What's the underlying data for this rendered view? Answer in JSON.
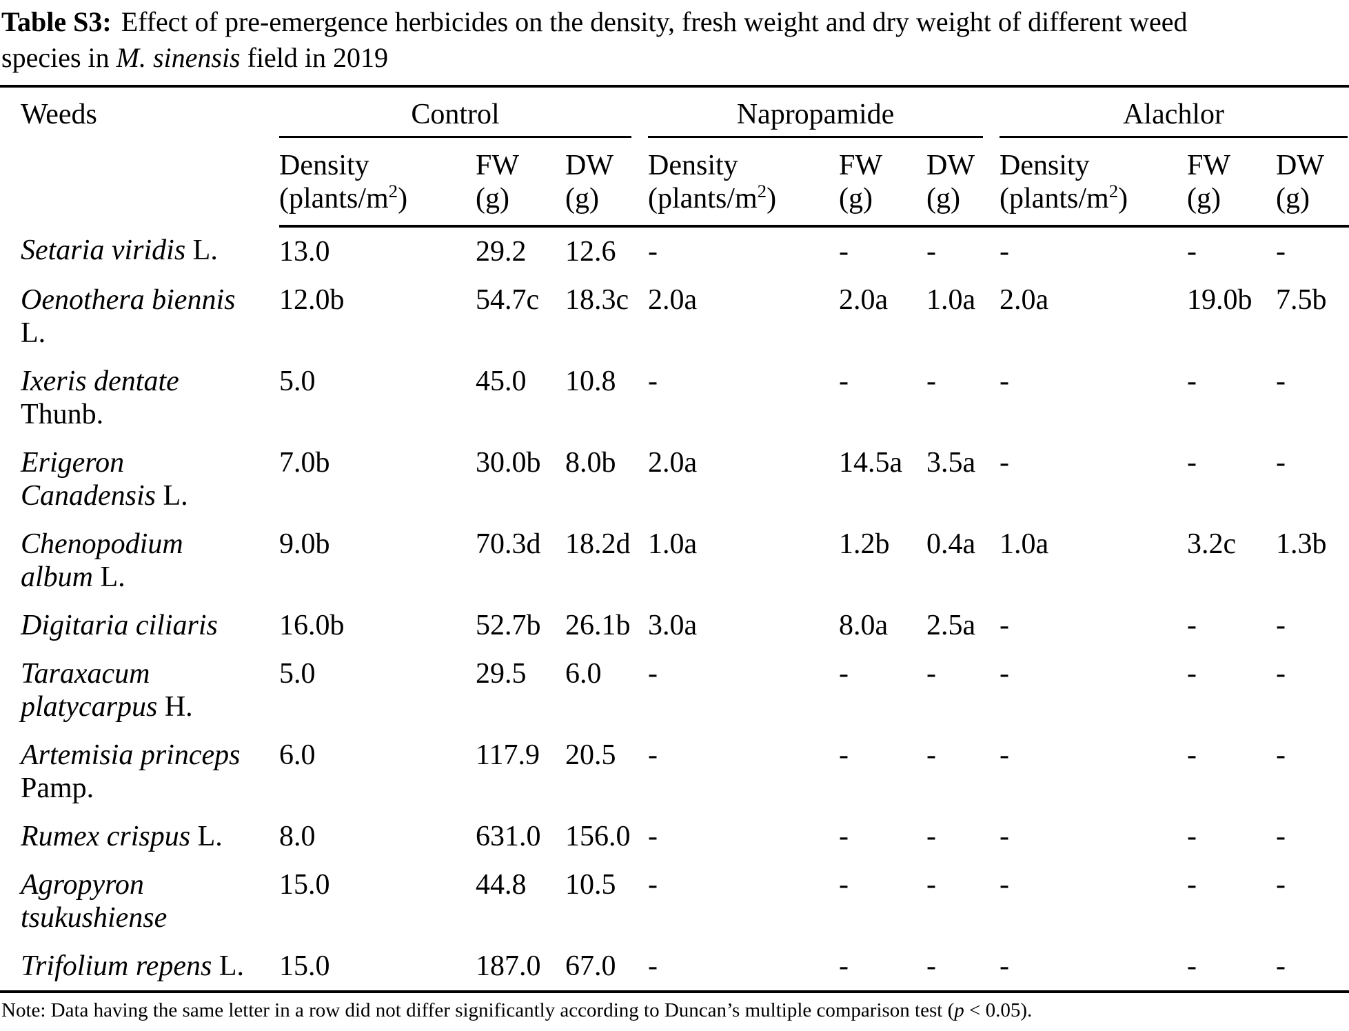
{
  "title": {
    "label": "Table S3:",
    "line1": "Effect of pre-emergence herbicides on the density, fresh weight and dry weight of different weed",
    "line2_prefix": "species in ",
    "line2_italic": "M. sinensis",
    "line2_suffix": " field in 2019"
  },
  "table": {
    "weeds_header": "Weeds",
    "groups": [
      {
        "name": "Control"
      },
      {
        "name": "Napropamide"
      },
      {
        "name": "Alachlor"
      }
    ],
    "subheader": {
      "density": "Density",
      "density_unit": {
        "pre": "(plants/m",
        "sup": "2",
        "post": ")"
      },
      "fw": "FW",
      "dw": "DW",
      "unit_g": "(g)"
    },
    "rows": [
      {
        "species_italic": "Setaria viridis",
        "species_roman": "L.",
        "values": [
          "13.0",
          "29.2",
          "12.6",
          "-",
          "-",
          "-",
          "-",
          "-",
          "-"
        ]
      },
      {
        "species_italic": "Oenothera biennis",
        "species_roman": "L.",
        "values": [
          "12.0b",
          "54.7c",
          "18.3c",
          "2.0a",
          "2.0a",
          "1.0a",
          "2.0a",
          "19.0b",
          "7.5b"
        ]
      },
      {
        "species_italic": "Ixeris dentate",
        "species_roman": "Thunb.",
        "values": [
          "5.0",
          "45.0",
          "10.8",
          "-",
          "-",
          "-",
          "-",
          "-",
          "-"
        ]
      },
      {
        "species_italic": "Erigeron Canadensis",
        "species_roman": "L.",
        "values": [
          "7.0b",
          "30.0b",
          "8.0b",
          "2.0a",
          "14.5a",
          "3.5a",
          "-",
          "-",
          "-"
        ]
      },
      {
        "species_italic": "Chenopodium album",
        "species_roman": "L.",
        "values": [
          "9.0b",
          "70.3d",
          "18.2d",
          "1.0a",
          "1.2b",
          "0.4a",
          "1.0a",
          "3.2c",
          "1.3b"
        ]
      },
      {
        "species_italic": "Digitaria ciliaris",
        "species_roman": "",
        "values": [
          "16.0b",
          "52.7b",
          "26.1b",
          "3.0a",
          "8.0a",
          "2.5a",
          "-",
          "-",
          "-"
        ]
      },
      {
        "species_italic": "Taraxacum platycarpus",
        "species_roman": "H.",
        "values": [
          "5.0",
          "29.5",
          "6.0",
          "-",
          "-",
          "-",
          "-",
          "-",
          "-"
        ]
      },
      {
        "species_italic": "Artemisia princeps",
        "species_roman": "Pamp.",
        "values": [
          "6.0",
          "117.9",
          "20.5",
          "-",
          "-",
          "-",
          "-",
          "-",
          "-"
        ]
      },
      {
        "species_italic": "Rumex crispus",
        "species_roman": "L.",
        "values": [
          "8.0",
          "631.0",
          "156.0",
          "-",
          "-",
          "-",
          "-",
          "-",
          "-"
        ]
      },
      {
        "species_italic": "Agropyron tsukushiense",
        "species_roman": "",
        "values": [
          "15.0",
          "44.8",
          "10.5",
          "-",
          "-",
          "-",
          "-",
          "-",
          "-"
        ]
      },
      {
        "species_italic": "Trifolium repens",
        "species_roman": "L.",
        "values": [
          "15.0",
          "187.0",
          "67.0",
          "-",
          "-",
          "-",
          "-",
          "-",
          "-"
        ]
      }
    ]
  },
  "note": {
    "prefix": "Note: Data having the same letter in a row did not differ significantly according to Duncan’s multiple comparison test (",
    "p": "p",
    "suffix": " < 0.05)."
  },
  "colors": {
    "text": "#000000",
    "background": "#ffffff",
    "rule": "#000000"
  }
}
